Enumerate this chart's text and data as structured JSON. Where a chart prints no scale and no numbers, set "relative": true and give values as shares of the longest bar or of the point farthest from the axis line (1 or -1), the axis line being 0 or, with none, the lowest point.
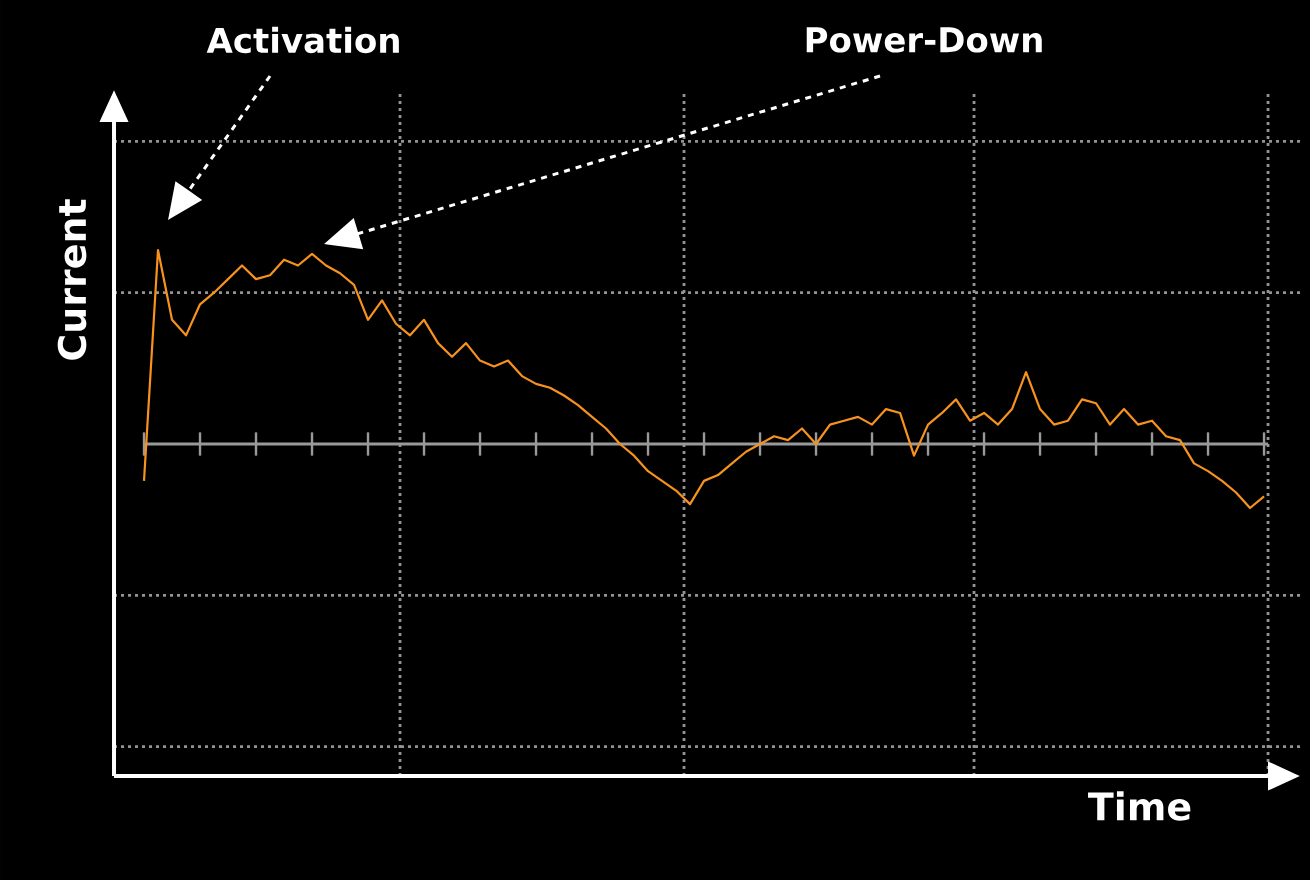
{
  "chart_data": {
    "type": "line",
    "relative": true,
    "ylabel": "Current",
    "grid": true,
    "annotations": [
      "Activation",
      "Power-Down",
      "Time"
    ],
    "categories": [
      null,
      null,
      null,
      null,
      null,
      null,
      null,
      null,
      null,
      null,
      null,
      null,
      null,
      null,
      null,
      null,
      null,
      null,
      null,
      null,
      null,
      null,
      null,
      null,
      null,
      null,
      null,
      null,
      null,
      null,
      null,
      null,
      null,
      null,
      null,
      null,
      null,
      null,
      null,
      null,
      null,
      null,
      null,
      null,
      null,
      null,
      null,
      null,
      null,
      null,
      null,
      null,
      null,
      null,
      null,
      null,
      null,
      null,
      null,
      null,
      null,
      null,
      null,
      null,
      null,
      null,
      null,
      null,
      null,
      null,
      null,
      null,
      null,
      null,
      null,
      null,
      null,
      null,
      null,
      null,
      null
    ],
    "series": [
      {
        "color": "#f7921e",
        "values": [
          -0.19,
          1.0,
          0.64,
          0.56,
          0.72,
          0.78,
          0.85,
          0.92,
          0.85,
          0.87,
          0.95,
          0.92,
          0.98,
          0.92,
          0.88,
          0.82,
          0.64,
          0.74,
          0.62,
          0.56,
          0.64,
          0.52,
          0.45,
          0.52,
          0.43,
          0.4,
          0.43,
          0.35,
          0.31,
          0.29,
          0.25,
          0.2,
          0.14,
          0.08,
          0,
          -0.06,
          -0.14,
          -0.19,
          -0.24,
          -0.31,
          -0.19,
          -0.16,
          -0.1,
          -0.04,
          0,
          0.04,
          0.02,
          0.08,
          0,
          0.1,
          0.12,
          0.14,
          0.1,
          0.18,
          0.16,
          -0.06,
          0.1,
          0.16,
          0.23,
          0.12,
          0.16,
          0.1,
          0.18,
          0.37,
          0.18,
          0.1,
          0.12,
          0.23,
          0.21,
          0.1,
          0.18,
          0.1,
          0.12,
          0.04,
          0.02,
          -0.1,
          -0.14,
          -0.19,
          -0.25,
          -0.33,
          -0.27
        ]
      }
    ]
  }
}
